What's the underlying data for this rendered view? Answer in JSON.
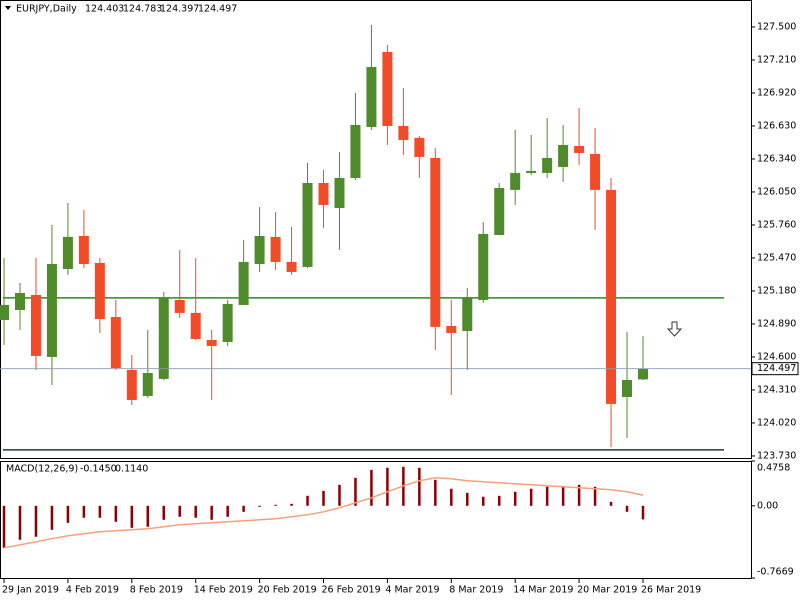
{
  "chart_data": [
    {
      "type": "candlestick",
      "symbol": "EURJPY,Daily",
      "categories": [
        "29 Jan 2019",
        null,
        null,
        null,
        "4 Feb 2019",
        null,
        null,
        null,
        "8 Feb 2019",
        null,
        null,
        null,
        "14 Feb 2019",
        null,
        null,
        null,
        "20 Feb 2019",
        null,
        null,
        null,
        "26 Feb 2019",
        null,
        null,
        null,
        "4 Mar 2019",
        null,
        null,
        null,
        "8 Mar 2019",
        null,
        null,
        null,
        "14 Mar 2019",
        null,
        null,
        null,
        "20 Mar 2019",
        null,
        null,
        null,
        "26 Mar 2019"
      ],
      "open": [
        124.925,
        125.013,
        125.145,
        124.6,
        125.373,
        125.663,
        125.426,
        124.951,
        124.486,
        124.257,
        124.407,
        125.101,
        124.987,
        124.749,
        124.732,
        125.057,
        125.417,
        125.655,
        125.435,
        125.391,
        126.129,
        125.909,
        126.173,
        126.621,
        127.28,
        126.63,
        126.525,
        126.349,
        124.872,
        124.828,
        125.101,
        125.672,
        126.068,
        126.217,
        126.217,
        126.27,
        126.454,
        126.384,
        126.068,
        124.248,
        124.403
      ],
      "high": [
        125.47,
        125.25,
        125.47,
        125.76,
        125.953,
        125.892,
        125.47,
        125.101,
        124.618,
        124.837,
        125.171,
        125.54,
        125.47,
        124.837,
        125.101,
        125.628,
        125.918,
        125.874,
        125.742,
        126.305,
        126.243,
        126.401,
        126.92,
        127.518,
        127.342,
        126.964,
        126.542,
        126.437,
        125.101,
        125.206,
        125.786,
        126.129,
        126.595,
        126.551,
        126.7,
        126.639,
        126.788,
        126.612,
        126.173,
        124.82,
        124.783
      ],
      "low": [
        124.705,
        124.837,
        124.486,
        124.354,
        125.321,
        125.382,
        124.811,
        124.486,
        124.178,
        124.24,
        124.398,
        124.943,
        124.749,
        124.222,
        124.697,
        125.057,
        125.347,
        125.365,
        125.321,
        125.382,
        125.734,
        125.54,
        126.155,
        126.595,
        126.463,
        126.375,
        126.173,
        124.661,
        124.266,
        124.486,
        125.074,
        125.672,
        125.936,
        126.199,
        126.173,
        126.138,
        126.287,
        125.716,
        123.809,
        123.888,
        124.397
      ],
      "close": [
        125.057,
        125.162,
        124.609,
        125.417,
        125.655,
        125.417,
        124.934,
        124.503,
        124.222,
        124.459,
        125.119,
        124.987,
        124.758,
        124.697,
        125.066,
        125.435,
        125.663,
        125.435,
        125.347,
        126.129,
        125.936,
        126.173,
        126.639,
        127.148,
        126.63,
        126.507,
        126.358,
        124.864,
        124.811,
        125.119,
        125.681,
        126.085,
        126.217,
        126.235,
        126.349,
        126.463,
        126.393,
        126.068,
        124.187,
        124.398,
        124.497
      ],
      "up_color": "#4f8a2b",
      "down_color": "#f24b27",
      "ylim": [
        123.712,
        127.737
      ],
      "yticks": [
        {
          "value": 127.5,
          "label": "127.500"
        },
        {
          "value": 127.21,
          "label": "127.210"
        },
        {
          "value": 126.92,
          "label": "126.920"
        },
        {
          "value": 126.63,
          "label": "126.630"
        },
        {
          "value": 126.34,
          "label": "126.340"
        },
        {
          "value": 126.05,
          "label": "126.050"
        },
        {
          "value": 125.76,
          "label": "125.760"
        },
        {
          "value": 125.47,
          "label": "125.470"
        },
        {
          "value": 125.18,
          "label": "125.180"
        },
        {
          "value": 124.89,
          "label": "124.890"
        },
        {
          "value": 124.6,
          "label": "124.600"
        },
        {
          "value": 124.31,
          "label": "124.310"
        },
        {
          "value": 124.02,
          "label": "124.020"
        },
        {
          "value": 123.73,
          "label": "123.730"
        }
      ],
      "hlines": [
        {
          "value": 125.119,
          "color": "#2a8a1f"
        },
        {
          "value": 123.783,
          "color": "#1d3b3b"
        }
      ]
    },
    {
      "type": "macd",
      "title": "MACD(12,26,9)",
      "legend_values": [
        "-0.1450",
        "0.1140"
      ],
      "histogram": {
        "color": "#8b0000",
        "values": [
          -0.446,
          -0.361,
          -0.329,
          -0.255,
          -0.181,
          -0.127,
          -0.127,
          -0.17,
          -0.234,
          -0.223,
          -0.149,
          -0.117,
          -0.127,
          -0.149,
          -0.117,
          -0.064,
          -0.011,
          0.011,
          0.021,
          0.106,
          0.159,
          0.223,
          0.297,
          0.382,
          0.404,
          0.414,
          0.404,
          0.276,
          0.181,
          0.138,
          0.096,
          0.106,
          0.149,
          0.181,
          0.202,
          0.212,
          0.223,
          0.202,
          0.042,
          -0.064,
          -0.145
        ]
      },
      "signal": {
        "color": "#f4a07c",
        "values": [
          -0.446,
          -0.414,
          -0.382,
          -0.35,
          -0.319,
          -0.297,
          -0.276,
          -0.266,
          -0.255,
          -0.244,
          -0.223,
          -0.202,
          -0.191,
          -0.181,
          -0.17,
          -0.159,
          -0.149,
          -0.138,
          -0.117,
          -0.096,
          -0.064,
          -0.021,
          0.032,
          0.085,
          0.149,
          0.212,
          0.266,
          0.297,
          0.287,
          0.266,
          0.255,
          0.244,
          0.234,
          0.223,
          0.212,
          0.202,
          0.191,
          0.181,
          0.17,
          0.149,
          0.114
        ]
      },
      "ylim": [
        -0.7669,
        0.4758
      ],
      "yticks": [
        0.4758,
        {
          "value": 0,
          "label": "0.00"
        },
        -0.7669
      ]
    }
  ]
}
